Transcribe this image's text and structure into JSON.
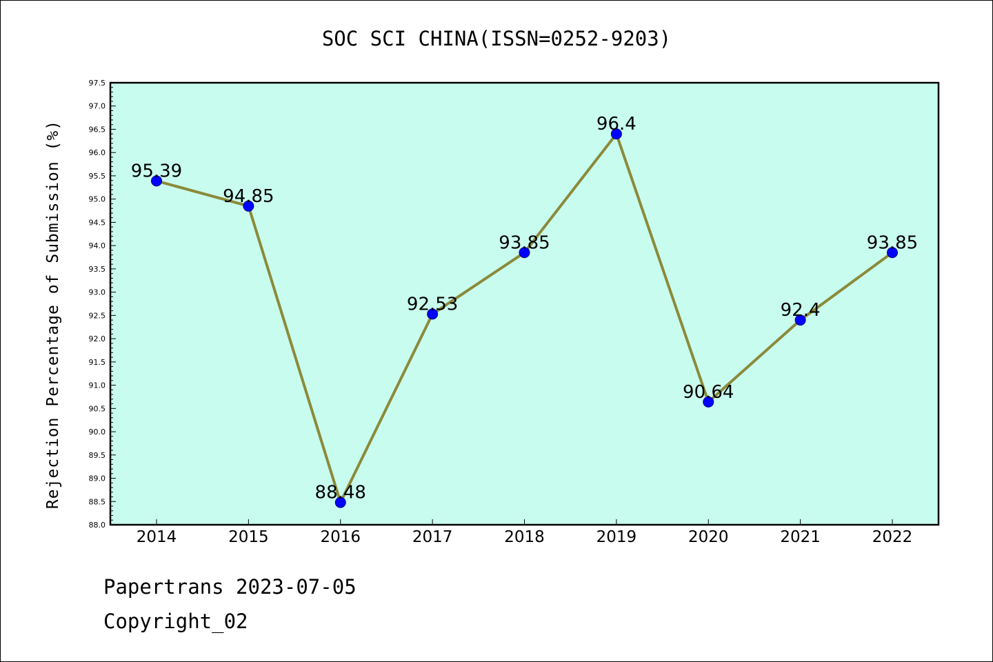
{
  "chart_data": {
    "type": "line",
    "title": "SOC SCI CHINA(ISSN=0252-9203)",
    "xlabel": "",
    "ylabel": "Rejection Percentage of Submission (%)",
    "categories": [
      "2014",
      "2015",
      "2016",
      "2017",
      "2018",
      "2019",
      "2020",
      "2021",
      "2022"
    ],
    "series": [
      {
        "values": [
          95.39,
          94.85,
          88.48,
          92.53,
          93.85,
          96.4,
          90.64,
          92.4,
          93.85
        ],
        "labels": [
          "95.39",
          "94.85",
          "88.48",
          "92.53",
          "93.85",
          "96.4",
          "90.64",
          "92.4",
          "93.85"
        ]
      }
    ],
    "ylim": [
      88.0,
      97.5
    ],
    "ytick_step": 0.5,
    "grid": false,
    "legend": "none",
    "colors": {
      "plot_background": "#c8fcee",
      "line": "#8b8a3a",
      "marker_fill": "#0000ff",
      "marker_edge": "#00008b"
    }
  },
  "footer": {
    "line1": "Papertrans 2023-07-05",
    "line2": "Copyright_02"
  }
}
